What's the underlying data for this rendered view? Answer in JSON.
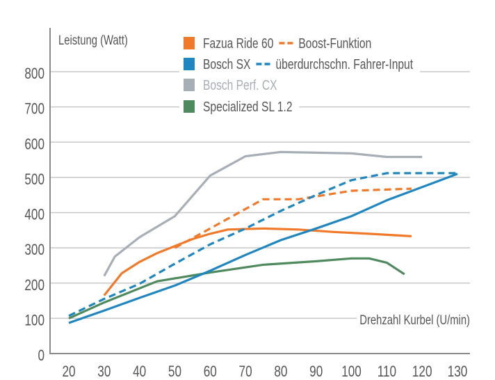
{
  "chart_data": {
    "type": "line",
    "ylabel": "Leistung (Watt)",
    "xlabel": "Drehzahl Kurbel (U/min)",
    "xlim": [
      20,
      130
    ],
    "ylim": [
      0,
      800
    ],
    "xticks": [
      20,
      30,
      40,
      50,
      60,
      70,
      80,
      90,
      100,
      110,
      120,
      130
    ],
    "yticks": [
      0,
      100,
      200,
      300,
      400,
      500,
      600,
      700,
      800
    ],
    "grid": true,
    "legend_position": "top",
    "legend": [
      {
        "label": "Fazua Ride 60",
        "color": "#f07a2a",
        "dash_label": "Boost-Funktion",
        "dash_color": "#f07a2a"
      },
      {
        "label": "Bosch SX",
        "color": "#1f86c0",
        "dash_label": "überdurchschn. Fahrer-Input",
        "dash_color": "#1f86c0"
      },
      {
        "label": "Bosch Perf. CX",
        "color": "#a7aeb6",
        "label_color": "#a7aeb6"
      },
      {
        "label": "Specialized SL 1.2",
        "color": "#4f8a5e"
      }
    ],
    "series": [
      {
        "name": "Bosch Perf. CX",
        "color": "#a7aeb6",
        "dashed": false,
        "x": [
          30,
          33,
          40,
          50,
          60,
          70,
          80,
          90,
          100,
          110,
          120
        ],
        "y": [
          220,
          275,
          330,
          390,
          505,
          560,
          572,
          570,
          568,
          558,
          558
        ]
      },
      {
        "name": "Specialized SL 1.2",
        "color": "#4f8a5e",
        "dashed": false,
        "x": [
          20,
          30,
          45,
          60,
          75,
          90,
          100,
          105,
          110,
          115
        ],
        "y": [
          100,
          145,
          205,
          230,
          252,
          262,
          270,
          270,
          258,
          225
        ]
      },
      {
        "name": "Fazua Ride 60",
        "color": "#f07a2a",
        "dashed": false,
        "x": [
          30,
          35,
          40,
          45,
          50,
          55,
          60,
          65,
          75,
          85,
          95,
          105,
          117
        ],
        "y": [
          165,
          228,
          260,
          285,
          305,
          325,
          340,
          352,
          355,
          352,
          345,
          340,
          333
        ]
      },
      {
        "name": "Boost-Funktion",
        "color": "#f07a2a",
        "dashed": true,
        "x": [
          50,
          60,
          75,
          85,
          100,
          117
        ],
        "y": [
          300,
          355,
          438,
          438,
          462,
          468
        ]
      },
      {
        "name": "Bosch SX",
        "color": "#1f86c0",
        "dashed": false,
        "x": [
          20,
          30,
          40,
          50,
          60,
          70,
          80,
          90,
          100,
          110,
          130
        ],
        "y": [
          87,
          122,
          158,
          193,
          235,
          280,
          322,
          355,
          390,
          435,
          510
        ]
      },
      {
        "name": "überdurchschn. Fahrer-Input",
        "color": "#1f86c0",
        "dashed": true,
        "x": [
          20,
          30,
          40,
          50,
          60,
          70,
          80,
          90,
          100,
          110,
          130
        ],
        "y": [
          107,
          155,
          198,
          255,
          310,
          355,
          405,
          450,
          492,
          512,
          512
        ]
      }
    ]
  }
}
